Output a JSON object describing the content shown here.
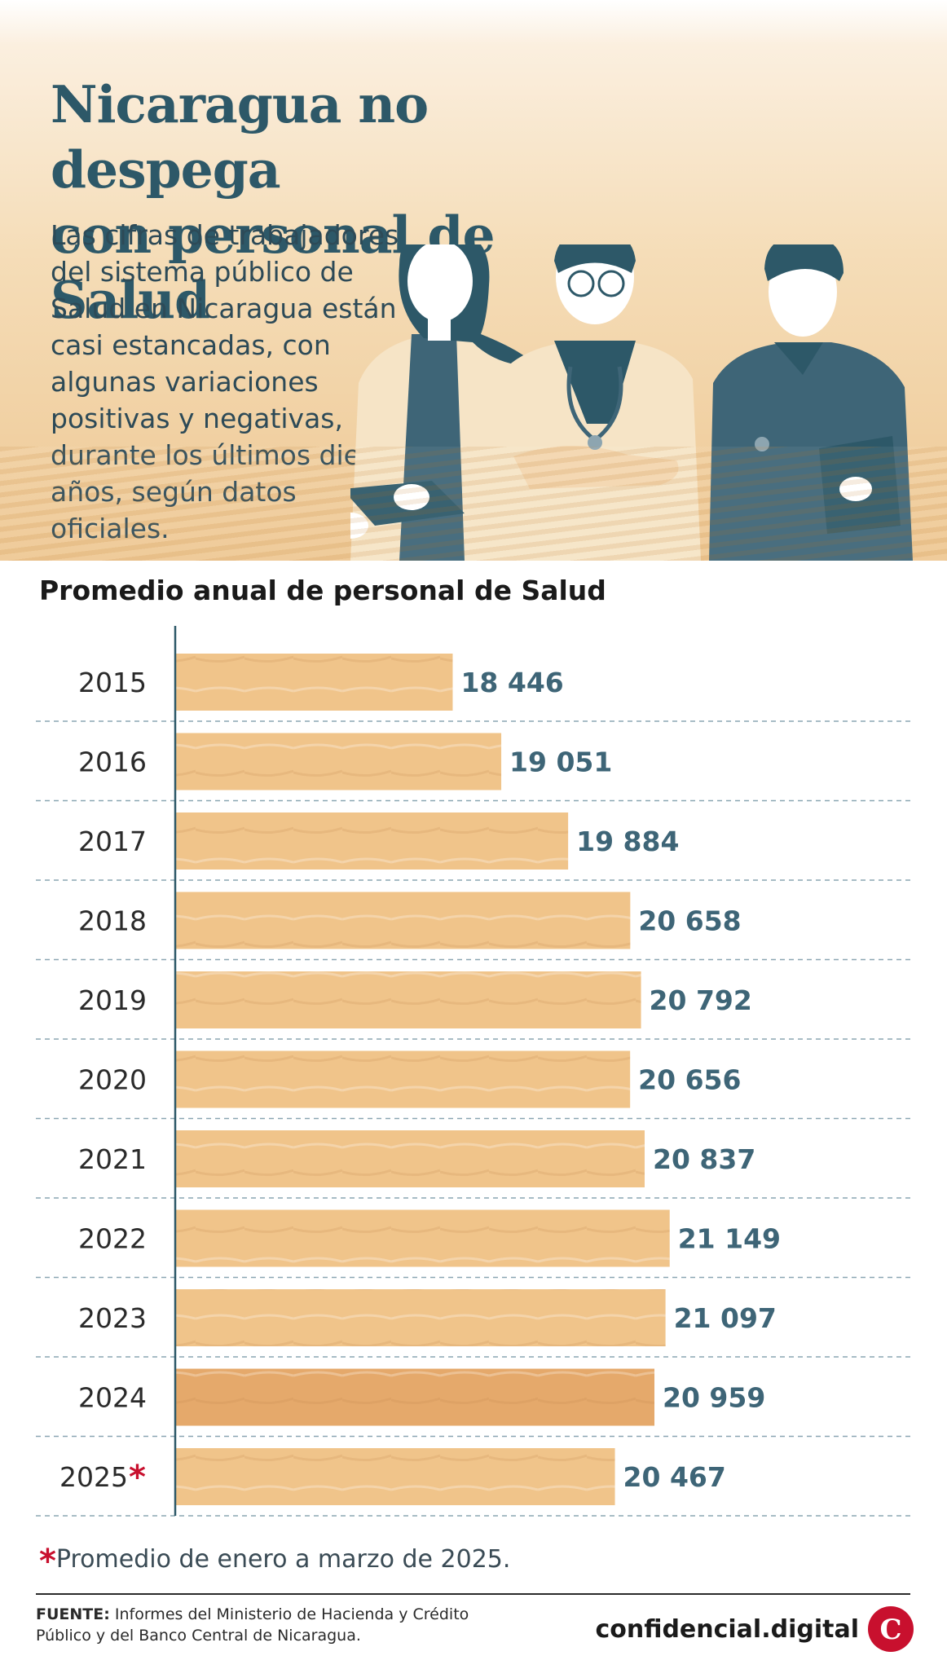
{
  "header": {
    "title_line1": "Nicaragua no despega",
    "title_line2": "con personal de Salud",
    "intro": [
      "Las cifras de trabajadores",
      "del sistema público de",
      "Salud en Nicaragua están",
      "casi estancadas, con",
      "algunas variaciones",
      "positivas y negativas,",
      "durante los últimos diez",
      "años, según datos",
      "oficiales."
    ]
  },
  "chart_data": {
    "type": "bar",
    "orientation": "horizontal",
    "title": "Promedio anual de personal de Salud",
    "categories": [
      "2015",
      "2016",
      "2017",
      "2018",
      "2019",
      "2020",
      "2021",
      "2022",
      "2023",
      "2024",
      "2025"
    ],
    "values": [
      18446,
      19051,
      19884,
      20658,
      20792,
      20656,
      20837,
      21149,
      21097,
      20959,
      20467
    ],
    "value_labels": [
      "18 446",
      "19 051",
      "19 884",
      "20 658",
      "20 792",
      "20 656",
      "20 837",
      "21 149",
      "21 097",
      "20 959",
      "20 467"
    ],
    "annotated_category": "2025",
    "annotation_mark": "*",
    "xlim": [
      15000,
      21700
    ],
    "colors": {
      "bar": "#f0c48a",
      "bar_2024": "#e5a96b",
      "value_label": "#3e6577",
      "axis": "#2d5868",
      "asterisk": "#c8102e"
    }
  },
  "footnote": {
    "mark": "*",
    "text": "Promedio de enero a marzo de 2025."
  },
  "source": {
    "label": "FUENTE:",
    "text": "Informes del Ministerio de Hacienda y Crédito Público y del Banco Central de Nicaragua."
  },
  "logo": {
    "text": "confidencial.digital",
    "mark": "C",
    "color": "#c8102e"
  }
}
